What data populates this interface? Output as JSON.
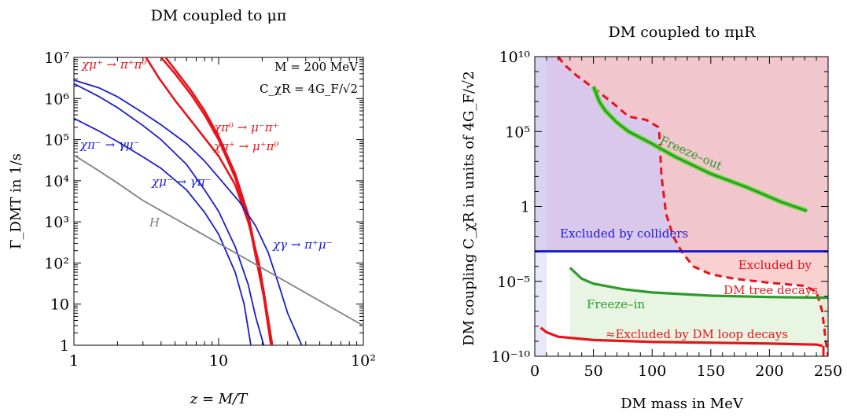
{
  "chart_data": [
    {
      "type": "line",
      "title": "DM coupled to μπ",
      "xlabel": "z = M/T",
      "ylabel": "Γ_DMT in 1/s",
      "log_x": true,
      "log_y": true,
      "xlim": [
        1,
        100
      ],
      "ylim": [
        1,
        10000000
      ],
      "x_ticks": [
        "1",
        "10",
        "10²"
      ],
      "y_ticks": [
        "1",
        "10",
        "10²",
        "10³",
        "10⁴",
        "10⁵",
        "10⁶",
        "10⁷"
      ],
      "params_text": [
        "M = 200 MeV",
        "C_χR = 4G_F/√2"
      ],
      "colors": {
        "blue": "#1a1ad6",
        "red": "#e8131a",
        "gray": "#7f7f7f"
      },
      "series": [
        {
          "name": "χμ⁺ → π⁺π⁰",
          "color": "red",
          "points": [
            [
              3.15,
              10000000
            ],
            [
              3.9,
              3000000
            ],
            [
              5,
              900000
            ],
            [
              7,
              200000
            ],
            [
              10,
              40000
            ],
            [
              13,
              8000
            ],
            [
              16,
              1000
            ],
            [
              19,
              100
            ],
            [
              21,
              12
            ],
            [
              23,
              1
            ]
          ]
        },
        {
          "name": "χπ⁰ → μ⁻π⁺",
          "color": "red",
          "points": [
            [
              4.3,
              10000000
            ],
            [
              5,
              5000000
            ],
            [
              6.5,
              1500000
            ],
            [
              8,
              500000
            ],
            [
              10,
              120000
            ],
            [
              13,
              15000
            ],
            [
              16,
              1500
            ],
            [
              18,
              200
            ],
            [
              20.5,
              20
            ],
            [
              23.5,
              1
            ]
          ]
        },
        {
          "name": "χπ⁺ → μ⁺π⁰",
          "color": "red",
          "points": [
            [
              4.0,
              10000000
            ],
            [
              5,
              4000000
            ],
            [
              6.5,
              1200000
            ],
            [
              8,
              400000
            ],
            [
              10,
              100000
            ],
            [
              13,
              12000
            ],
            [
              16,
              1200
            ],
            [
              18,
              150
            ],
            [
              20.5,
              15
            ],
            [
              23,
              1
            ]
          ]
        },
        {
          "name": "χπ⁻ → γμ⁻",
          "color": "blue",
          "points": [
            [
              1,
              2300000
            ],
            [
              1.5,
              1100000
            ],
            [
              2,
              600000
            ],
            [
              3,
              220000
            ],
            [
              4,
              100000
            ],
            [
              6,
              25000
            ],
            [
              8,
              6000
            ],
            [
              10,
              1800
            ],
            [
              13,
              250
            ],
            [
              16,
              30
            ],
            [
              18,
              5
            ],
            [
              20.5,
              1
            ]
          ]
        },
        {
          "name": "χμ⁻ → γπ⁻",
          "color": "blue",
          "points": [
            [
              1,
              330000
            ],
            [
              1.5,
              160000
            ],
            [
              2,
              90000
            ],
            [
              3,
              38000
            ],
            [
              4,
              20000
            ],
            [
              6,
              6000
            ],
            [
              8,
              1700
            ],
            [
              10,
              500
            ],
            [
              13,
              60
            ],
            [
              15,
              10
            ],
            [
              16.7,
              1
            ]
          ]
        },
        {
          "name": "χγ → π⁺μ⁻",
          "color": "blue",
          "points": [
            [
              1,
              2800000
            ],
            [
              1.5,
              1800000
            ],
            [
              2,
              1100000
            ],
            [
              3,
              450000
            ],
            [
              4,
              230000
            ],
            [
              6,
              80000
            ],
            [
              8,
              30000
            ],
            [
              10,
              12000
            ],
            [
              14,
              3000
            ],
            [
              18,
              800
            ],
            [
              22,
              180
            ],
            [
              26,
              30
            ],
            [
              30,
              6
            ],
            [
              37.5,
              1
            ]
          ]
        },
        {
          "name": "H",
          "color": "gray",
          "points": [
            [
              1,
              42000
            ],
            [
              1.4,
              20000
            ],
            [
              2,
              8800
            ],
            [
              3,
              3300
            ],
            [
              5,
              1200
            ],
            [
              10,
              300
            ],
            [
              20,
              75
            ],
            [
              50,
              12
            ],
            [
              100,
              3
            ]
          ]
        }
      ]
    },
    {
      "type": "line",
      "title": "DM coupled to πμR",
      "xlabel": "DM mass in MeV",
      "ylabel": "DM coupling C_χR in units of 4G_F/√2",
      "log_y": true,
      "xlim": [
        0,
        250
      ],
      "ylim": [
        "1e-10",
        "1e10"
      ],
      "x_ticks": [
        "0",
        "50",
        "100",
        "150",
        "200",
        "250"
      ],
      "y_ticks": [
        "10⁻¹⁰",
        "10⁻⁵",
        "1",
        "10⁵",
        "10¹⁰"
      ],
      "region_labels": [
        "Excluded by colliders",
        "Excluded by",
        "DM tree decays",
        "Freeze–out",
        "Freeze–in",
        "≈Excluded by DM loop decays"
      ],
      "regions": [
        {
          "name": "Excluded by colliders",
          "color": "#dac8ec",
          "x": [
            0,
            250
          ],
          "y": [
            "1e-3",
            "1e10"
          ]
        },
        {
          "name": "Excluded by DM tree decays",
          "color": "#f7c6c6"
        },
        {
          "name": "Freeze-in",
          "color": "#e0f2d8"
        }
      ],
      "colors": {
        "collider": "#1a1ad6",
        "tree_decay": "#e8131a",
        "freeze_out": "#2d9a2d",
        "freeze_out_band": "#66dd33",
        "freeze_in": "#2d9a2d",
        "loop_decay": "#e8131a"
      },
      "series": [
        {
          "label": "Excluded by colliders",
          "color": "collider",
          "points": [
            [
              0,
              0.001
            ],
            [
              250,
              0.001
            ]
          ]
        },
        {
          "label": "DM tree decays",
          "color": "tree_decay",
          "dashed": true,
          "points": [
            [
              20,
              10000000000
            ],
            [
              25,
              3000000000
            ],
            [
              35,
              600000000
            ],
            [
              50,
              80000000
            ],
            [
              65,
              10000000
            ],
            [
              80,
              1000000
            ],
            [
              95,
              600000
            ],
            [
              105,
              200000
            ],
            [
              106,
              100000
            ],
            [
              108,
              100
            ],
            [
              112,
              0.3
            ],
            [
              118,
              0.01
            ],
            [
              125,
              0.001
            ],
            [
              135,
              0.0001
            ],
            [
              150,
              3e-05
            ],
            [
              170,
              1.5e-05
            ],
            [
              200,
              8e-06
            ],
            [
              230,
              5e-06
            ],
            [
              240,
              2e-06
            ],
            [
              245,
              1e-07
            ],
            [
              248,
              1e-09
            ],
            [
              250,
              1e-10
            ]
          ]
        },
        {
          "label": "Freeze–out",
          "color": "freeze_out",
          "points": [
            [
              50,
              100000000
            ],
            [
              55,
              10000000
            ],
            [
              60,
              2500000
            ],
            [
              70,
              400000
            ],
            [
              80,
              100000
            ],
            [
              100,
              15000
            ],
            [
              120,
              2000
            ],
            [
              150,
              150
            ],
            [
              180,
              20
            ],
            [
              210,
              2
            ],
            [
              232,
              0.5
            ]
          ]
        },
        {
          "label": "Freeze–in",
          "color": "freeze_in",
          "points": [
            [
              30,
              8e-05
            ],
            [
              40,
              1.5e-05
            ],
            [
              50,
              7e-06
            ],
            [
              75,
              3e-06
            ],
            [
              100,
              1.8e-06
            ],
            [
              150,
              1.1e-06
            ],
            [
              200,
              9e-07
            ],
            [
              250,
              8e-07
            ]
          ]
        },
        {
          "label": "≈Excluded by DM loop decays",
          "color": "loop_decay",
          "points": [
            [
              5,
              8e-09
            ],
            [
              10,
              4e-09
            ],
            [
              20,
              2e-09
            ],
            [
              50,
              1.2e-09
            ],
            [
              100,
              9e-10
            ],
            [
              150,
              8e-10
            ],
            [
              200,
              7e-10
            ],
            [
              240,
              6e-10
            ],
            [
              245,
              5e-10
            ]
          ]
        }
      ]
    }
  ]
}
